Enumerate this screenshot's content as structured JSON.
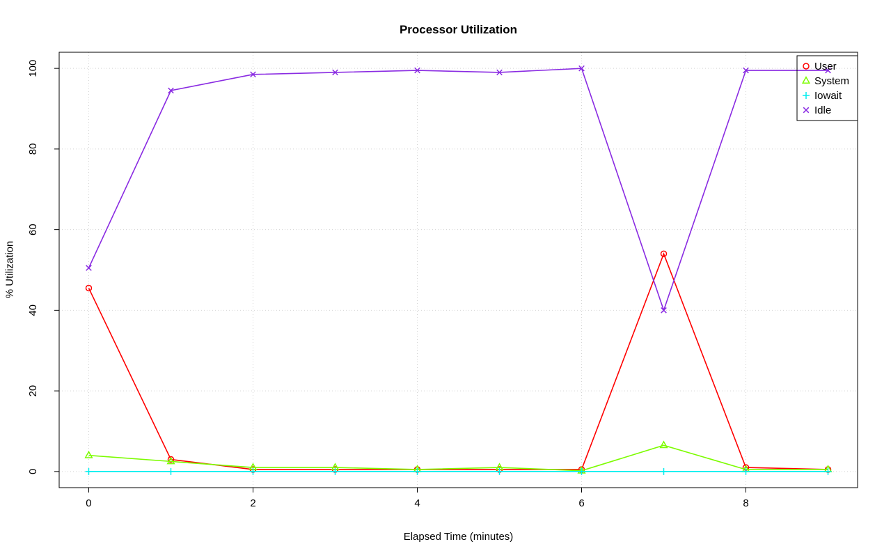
{
  "chart_data": {
    "type": "line",
    "title": "Processor Utilization",
    "xlabel": "Elapsed Time (minutes)",
    "ylabel": "% Utilization",
    "x": [
      0,
      1,
      2,
      3,
      4,
      5,
      6,
      7,
      8,
      9
    ],
    "xticks": [
      0,
      2,
      4,
      6,
      8
    ],
    "yticks": [
      0,
      20,
      40,
      60,
      80,
      100
    ],
    "xlim": [
      0,
      9
    ],
    "ylim": [
      0,
      100
    ],
    "grid": true,
    "grid_color": "#d3d3d3",
    "legend_position": "top-right",
    "series": [
      {
        "name": "User",
        "color": "#ff0000",
        "symbol": "circle",
        "values": [
          45.5,
          3,
          0.5,
          0.5,
          0.5,
          0.5,
          0.5,
          54,
          1,
          0.5
        ]
      },
      {
        "name": "System",
        "color": "#7cfc00",
        "symbol": "triangle",
        "values": [
          4,
          2.5,
          1,
          1,
          0.5,
          1,
          0.2,
          6.5,
          0.5,
          0.5
        ]
      },
      {
        "name": "Iowait",
        "color": "#00eeee",
        "symbol": "plus",
        "values": [
          0,
          0,
          0,
          0,
          0,
          0,
          0,
          0,
          0,
          0
        ]
      },
      {
        "name": "Idle",
        "color": "#8a2be2",
        "symbol": "x",
        "values": [
          50.5,
          94.5,
          98.5,
          99,
          99.5,
          99,
          100,
          40,
          99.5,
          99.5
        ]
      }
    ]
  }
}
